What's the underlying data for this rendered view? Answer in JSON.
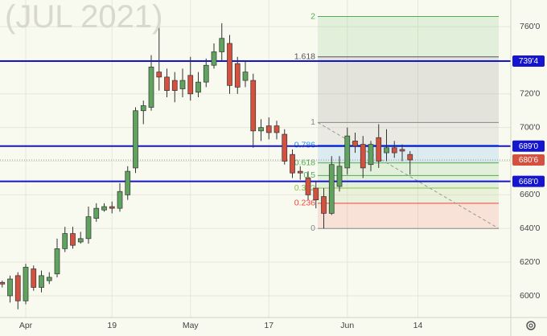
{
  "chart_data": {
    "type": "candlestick",
    "title": "(JUL 2021)",
    "categories": [
      null,
      null,
      null,
      "Apr",
      null,
      null,
      null,
      null,
      null,
      null,
      null,
      null,
      null,
      null,
      "19",
      null,
      null,
      null,
      null,
      null,
      null,
      null,
      null,
      null,
      "May",
      null,
      null,
      null,
      null,
      null,
      null,
      null,
      null,
      null,
      "17",
      null,
      null,
      null,
      null,
      null,
      null,
      null,
      null,
      null,
      "Jun",
      null,
      null,
      null,
      null,
      null,
      null,
      null,
      null,
      "14"
    ],
    "open": [
      608,
      600,
      612,
      597,
      616,
      605,
      609,
      613,
      628,
      637,
      632,
      634,
      646,
      651,
      653,
      652,
      660,
      676,
      710,
      712,
      733,
      730,
      728,
      723,
      731,
      721,
      727,
      737,
      745,
      750,
      738,
      728,
      728,
      698,
      701,
      701,
      696,
      684,
      674,
      670,
      664,
      659,
      649,
      665,
      676,
      692,
      690,
      678,
      694,
      685,
      688,
      687,
      684,
      null
    ],
    "high": [
      609,
      612,
      614,
      619,
      618,
      615,
      614,
      634,
      641,
      641,
      638,
      653,
      655,
      655,
      656,
      667,
      677,
      712,
      716,
      743,
      768,
      735,
      733,
      735,
      742,
      733,
      741,
      750,
      762,
      755,
      742,
      740,
      732,
      705,
      706,
      704,
      699,
      687,
      677,
      674,
      668,
      664,
      683,
      683,
      700,
      697,
      695,
      692,
      702,
      699,
      692,
      690,
      686,
      null
    ],
    "low": [
      605,
      596,
      592,
      595,
      603,
      602,
      607,
      611,
      626,
      628,
      631,
      631,
      644,
      650,
      649,
      650,
      657,
      673,
      702,
      710,
      722,
      718,
      715,
      718,
      716,
      718,
      724,
      735,
      740,
      720,
      720,
      724,
      688,
      692,
      693,
      693,
      678,
      670,
      669,
      657,
      652,
      640,
      648,
      662,
      672,
      685,
      670,
      674,
      676,
      680,
      682,
      680,
      672,
      null
    ],
    "close": [
      607,
      610,
      597,
      617,
      605,
      612,
      611,
      628,
      637,
      630,
      634,
      647,
      652,
      653,
      652,
      662,
      674,
      710,
      713,
      736,
      730,
      722,
      722,
      728,
      720,
      727,
      737,
      745,
      753,
      725,
      724,
      733,
      698,
      700,
      697,
      697,
      680,
      673,
      673,
      660,
      657,
      649,
      678,
      677,
      695,
      689,
      676,
      690,
      680,
      688,
      685,
      686,
      680.75,
      null
    ],
    "up_color": "#5fa35f",
    "down_color": "#d4503f",
    "ylim": [
      587.1,
      775.8
    ],
    "yticks": [
      {
        "value": 600,
        "label": "600'0"
      },
      {
        "value": 620,
        "label": "620'0"
      },
      {
        "value": 640,
        "label": "640'0"
      },
      {
        "value": 660,
        "label": "660'0"
      },
      {
        "value": 680,
        "label": "680'0"
      },
      {
        "value": 700,
        "label": "700'0"
      },
      {
        "value": 720,
        "label": "720'0"
      },
      {
        "value": 740,
        "label": "740'0"
      },
      {
        "value": 760,
        "label": "760'0"
      }
    ],
    "grid": true,
    "horizontal_lines": [
      {
        "value": 739.5,
        "label": "739'4",
        "color": "#1515d0"
      },
      {
        "value": 689,
        "label": "689'0",
        "color": "#1515d0"
      },
      {
        "value": 668,
        "label": "668'0",
        "color": "#1515d0"
      }
    ],
    "last_price": {
      "value": 680.75,
      "label": "680'6",
      "color": "#d4503f"
    },
    "fib": [
      {
        "ratio": 2,
        "price": 766,
        "color": "#4caf50"
      },
      {
        "ratio": 1.618,
        "price": 742,
        "color": "#555555"
      },
      {
        "ratio": 1,
        "price": 703,
        "color": "#888888"
      },
      {
        "ratio": 0.786,
        "price": 689.5,
        "color": "#2196f3"
      },
      {
        "ratio": 0.618,
        "price": 679,
        "color": "#4caf50"
      },
      {
        "ratio": 0.5,
        "price": 671.5,
        "color": "#4caf50"
      },
      {
        "ratio": 0.382,
        "price": 664,
        "color": "#8bc34a"
      },
      {
        "ratio": 0.236,
        "price": 655,
        "color": "#f44336"
      },
      {
        "ratio": 0,
        "price": 640,
        "color": "#888888"
      }
    ]
  }
}
